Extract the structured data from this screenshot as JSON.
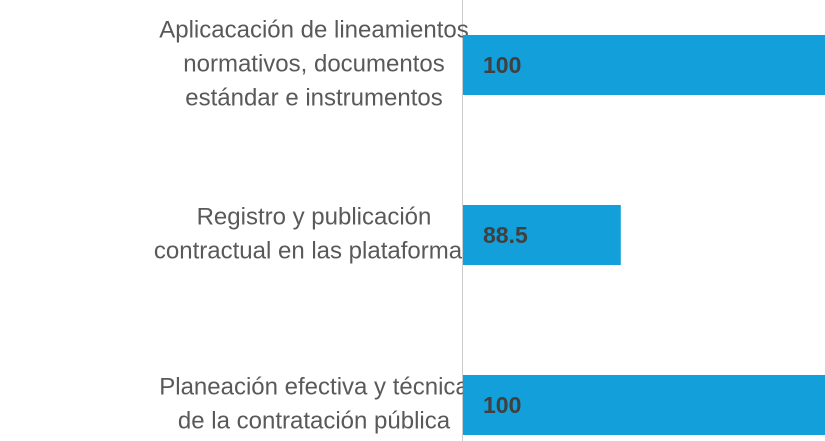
{
  "chart_data": {
    "type": "barh",
    "categories": [
      [
        "Aplicacación de lineamientos",
        "normativos, documentos",
        "estándar e instrumentos"
      ],
      [
        "Registro y publicación",
        "contractual en las plataformas"
      ],
      [
        "Planeación efectiva y técnica",
        "de la contratación pública"
      ]
    ],
    "values": [
      100,
      88.5,
      100
    ],
    "color": "#139fd9",
    "xlim": [
      80,
      99.5
    ]
  }
}
